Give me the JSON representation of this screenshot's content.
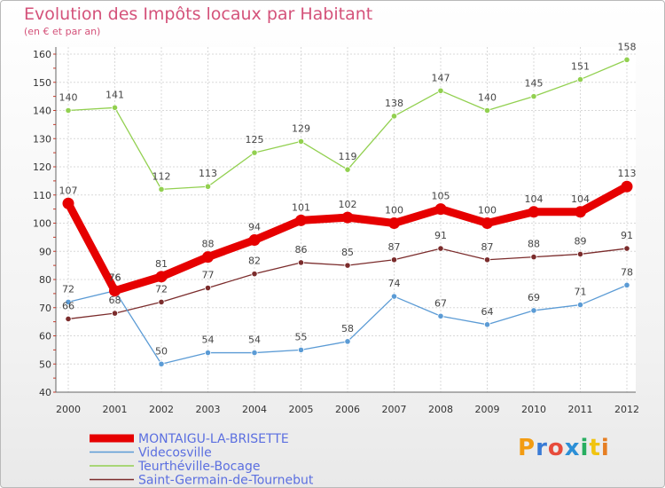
{
  "chart_data": {
    "type": "line",
    "title": "Evolution des Impôts locaux par Habitant",
    "subtitle": "(en € et par an)",
    "categories": [
      "2000",
      "2001",
      "2002",
      "2003",
      "2004",
      "2005",
      "2006",
      "2007",
      "2008",
      "2009",
      "2010",
      "2011",
      "2012"
    ],
    "ylim": [
      40,
      160
    ],
    "yticks": [
      40,
      50,
      60,
      70,
      80,
      90,
      100,
      110,
      120,
      130,
      140,
      150,
      160
    ],
    "grid": true,
    "legend_position": "bottom-left",
    "series": [
      {
        "name": "MONTAIGU-LA-BRISETTE",
        "color": "#e60000",
        "values": [
          107,
          76,
          81,
          88,
          94,
          101,
          102,
          100,
          105,
          100,
          104,
          104,
          113
        ]
      },
      {
        "name": "Videcosville",
        "color": "#5b9bd5",
        "values": [
          72,
          76,
          50,
          54,
          54,
          55,
          58,
          74,
          67,
          64,
          69,
          71,
          78
        ]
      },
      {
        "name": "Teurthéville-Bocage",
        "color": "#92d050",
        "values": [
          140,
          141,
          112,
          113,
          125,
          129,
          119,
          138,
          147,
          140,
          145,
          151,
          158
        ]
      },
      {
        "name": "Saint-Germain-de-Tournebut",
        "color": "#7b2c2c",
        "values": [
          66,
          68,
          72,
          77,
          82,
          86,
          85,
          87,
          91,
          87,
          88,
          89,
          91
        ]
      }
    ]
  },
  "logo": {
    "text": "Proxiti",
    "letters": [
      "P",
      "r",
      "o",
      "x",
      "i",
      "t",
      "i"
    ],
    "colors": [
      "#f39c12",
      "#3a7bd5",
      "#e74c3c",
      "#2c8fd6",
      "#27ae60",
      "#f1c40f",
      "#e67e22"
    ]
  }
}
